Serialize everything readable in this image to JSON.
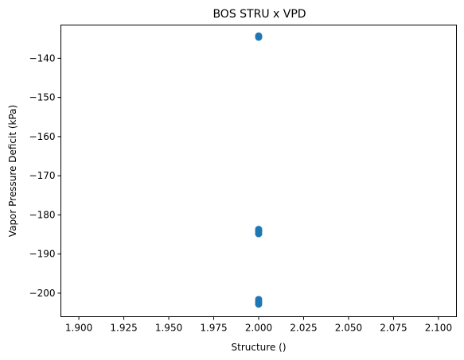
{
  "chart_data": {
    "type": "scatter",
    "title": "BOS STRU x VPD",
    "xlabel": "Structure ()",
    "ylabel": "Vapor Pressure Deficit (kPa)",
    "xlim": [
      1.89,
      2.11
    ],
    "ylim": [
      -206.0,
      -131.5
    ],
    "xticks": [
      1.9,
      1.925,
      1.95,
      1.975,
      2.0,
      2.025,
      2.05,
      2.075,
      2.1
    ],
    "xtick_labels": [
      "1.900",
      "1.925",
      "1.950",
      "1.975",
      "2.000",
      "2.025",
      "2.050",
      "2.075",
      "2.100"
    ],
    "yticks": [
      -140,
      -150,
      -160,
      -170,
      -180,
      -190,
      -200
    ],
    "ytick_labels": [
      "−140",
      "−150",
      "−160",
      "−170",
      "−180",
      "−190",
      "−200"
    ],
    "grid": false,
    "point_color": "#1f77b4",
    "points": [
      {
        "x": 2.0,
        "y": -134.3
      },
      {
        "x": 2.0,
        "y": -134.6
      },
      {
        "x": 2.0,
        "y": -183.7
      },
      {
        "x": 2.0,
        "y": -184.2
      },
      {
        "x": 2.0,
        "y": -184.8
      },
      {
        "x": 2.0,
        "y": -201.6
      },
      {
        "x": 2.0,
        "y": -202.2
      },
      {
        "x": 2.0,
        "y": -202.8
      }
    ]
  }
}
